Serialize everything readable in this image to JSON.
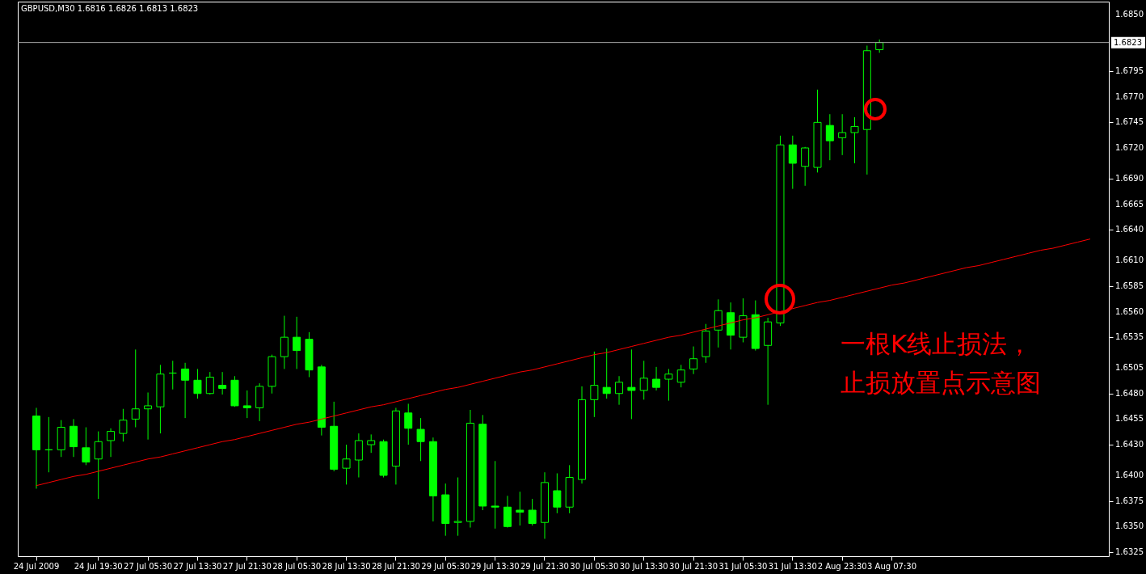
{
  "chart_data": {
    "type": "candlestick",
    "title": "GBPUSD,M30  1.6816 1.6826 1.6813 1.6823",
    "color": "#00ff00",
    "categories": [
      "24 Jul 2009",
      null,
      null,
      null,
      null,
      "24 Jul 19:30",
      null,
      null,
      null,
      "27 Jul 05:30",
      null,
      null,
      null,
      "27 Jul 13:30",
      null,
      null,
      null,
      "27 Jul 21:30",
      null,
      null,
      null,
      "28 Jul 05:30",
      null,
      null,
      null,
      "28 Jul 13:30",
      null,
      null,
      null,
      "28 Jul 21:30",
      null,
      null,
      null,
      "29 Jul 05:30",
      null,
      null,
      null,
      "29 Jul 13:30",
      null,
      null,
      null,
      "29 Jul 21:30",
      null,
      null,
      null,
      "30 Jul 05:30",
      null,
      null,
      null,
      "30 Jul 13:30",
      null,
      null,
      null,
      "30 Jul 21:30",
      null,
      null,
      null,
      "31 Jul 05:30",
      null,
      null,
      null,
      "31 Jul 13:30",
      null,
      null,
      null,
      "2 Aug 23:30",
      null,
      null,
      null,
      "3 Aug 07:30",
      null,
      null,
      null,
      null,
      null,
      null,
      null,
      null,
      null,
      null,
      null,
      null,
      null,
      null,
      null,
      null
    ],
    "ohlc": [
      [
        1.6458,
        1.6466,
        1.6387,
        1.6425
      ],
      [
        1.6425,
        1.6457,
        1.6403,
        1.6425
      ],
      [
        1.6425,
        1.6454,
        1.6418,
        1.6447
      ],
      [
        1.6448,
        1.6455,
        1.6418,
        1.6428
      ],
      [
        1.6427,
        1.6447,
        1.641,
        1.6413
      ],
      [
        1.6416,
        1.6443,
        1.6377,
        1.6433
      ],
      [
        1.6434,
        1.6446,
        1.6418,
        1.6443
      ],
      [
        1.6441,
        1.6465,
        1.6433,
        1.6454
      ],
      [
        1.6455,
        1.6523,
        1.6447,
        1.6465
      ],
      [
        1.6465,
        1.6481,
        1.6435,
        1.6468
      ],
      [
        1.6467,
        1.6508,
        1.6441,
        1.6499
      ],
      [
        1.65,
        1.6512,
        1.6484,
        1.65
      ],
      [
        1.6504,
        1.651,
        1.6456,
        1.6493
      ],
      [
        1.6493,
        1.6504,
        1.6475,
        1.648
      ],
      [
        1.648,
        1.6501,
        1.6479,
        1.6496
      ],
      [
        1.6488,
        1.6501,
        1.6479,
        1.6485
      ],
      [
        1.6493,
        1.6497,
        1.6467,
        1.6468
      ],
      [
        1.6468,
        1.6483,
        1.6456,
        1.6466
      ],
      [
        1.6466,
        1.649,
        1.6453,
        1.6487
      ],
      [
        1.6487,
        1.6518,
        1.648,
        1.6516
      ],
      [
        1.6516,
        1.6556,
        1.6504,
        1.6535
      ],
      [
        1.6535,
        1.6555,
        1.6504,
        1.6522
      ],
      [
        1.6533,
        1.654,
        1.6496,
        1.6503
      ],
      [
        1.6506,
        1.6508,
        1.6439,
        1.6447
      ],
      [
        1.6448,
        1.6472,
        1.6404,
        1.6406
      ],
      [
        1.6407,
        1.643,
        1.6391,
        1.6416
      ],
      [
        1.6415,
        1.6441,
        1.6398,
        1.6434
      ],
      [
        1.643,
        1.644,
        1.6422,
        1.6434
      ],
      [
        1.6433,
        1.6435,
        1.6398,
        1.64
      ],
      [
        1.6409,
        1.6466,
        1.6391,
        1.6463
      ],
      [
        1.6461,
        1.647,
        1.643,
        1.6446
      ],
      [
        1.6445,
        1.6456,
        1.6414,
        1.6433
      ],
      [
        1.6433,
        1.6437,
        1.6355,
        1.638
      ],
      [
        1.6381,
        1.6392,
        1.6341,
        1.6353
      ],
      [
        1.6354,
        1.6398,
        1.6341,
        1.6355
      ],
      [
        1.6355,
        1.6464,
        1.6349,
        1.6451
      ],
      [
        1.645,
        1.6459,
        1.6366,
        1.637
      ],
      [
        1.637,
        1.6414,
        1.6348,
        1.6369
      ],
      [
        1.6369,
        1.638,
        1.6349,
        1.635
      ],
      [
        1.6366,
        1.6384,
        1.6351,
        1.6364
      ],
      [
        1.6366,
        1.6377,
        1.6351,
        1.6353
      ],
      [
        1.6354,
        1.6403,
        1.6338,
        1.6393
      ],
      [
        1.6385,
        1.6402,
        1.6363,
        1.6369
      ],
      [
        1.6369,
        1.641,
        1.6363,
        1.6398
      ],
      [
        1.6396,
        1.6487,
        1.6392,
        1.6474
      ],
      [
        1.6474,
        1.6521,
        1.6457,
        1.6488
      ],
      [
        1.6486,
        1.6524,
        1.6475,
        1.648
      ],
      [
        1.648,
        1.6497,
        1.6469,
        1.6491
      ],
      [
        1.6486,
        1.6523,
        1.6455,
        1.6483
      ],
      [
        1.6483,
        1.6512,
        1.6474,
        1.6495
      ],
      [
        1.6494,
        1.6506,
        1.6483,
        1.6486
      ],
      [
        1.6494,
        1.6504,
        1.6473,
        1.6499
      ],
      [
        1.6491,
        1.6508,
        1.6486,
        1.6503
      ],
      [
        1.6504,
        1.6526,
        1.6499,
        1.6514
      ],
      [
        1.6516,
        1.6548,
        1.651,
        1.6541
      ],
      [
        1.6542,
        1.6572,
        1.6525,
        1.6561
      ],
      [
        1.6559,
        1.6569,
        1.6523,
        1.6537
      ],
      [
        1.6535,
        1.6573,
        1.653,
        1.6556
      ],
      [
        1.6557,
        1.6571,
        1.6522,
        1.6524
      ],
      [
        1.6527,
        1.6554,
        1.6469,
        1.655
      ],
      [
        1.6549,
        1.6732,
        1.6546,
        1.6723
      ],
      [
        1.6723,
        1.6732,
        1.668,
        1.6705
      ],
      [
        1.6702,
        1.6721,
        1.6683,
        1.672
      ],
      [
        1.6701,
        1.6777,
        1.6696,
        1.6745
      ],
      [
        1.6742,
        1.6753,
        1.6708,
        1.6727
      ],
      [
        1.673,
        1.6753,
        1.6713,
        1.6735
      ],
      [
        1.6735,
        1.675,
        1.6705,
        1.6741
      ],
      [
        1.6738,
        1.682,
        1.6694,
        1.6815
      ],
      [
        1.6816,
        1.6826,
        1.6813,
        1.6823
      ],
      null,
      null,
      null,
      null,
      null,
      null,
      null,
      null,
      null,
      null,
      null,
      null,
      null,
      null,
      null,
      null,
      null
    ],
    "series": [
      {
        "type": "line",
        "color": "#ff0000",
        "values": [
          1.639,
          1.6393,
          1.6396,
          1.6399,
          1.6401,
          1.6404,
          1.6407,
          1.641,
          1.6413,
          1.6416,
          1.6418,
          1.6421,
          1.6424,
          1.6427,
          1.643,
          1.6433,
          1.6435,
          1.6438,
          1.6441,
          1.6444,
          1.6447,
          1.645,
          1.6452,
          1.6455,
          1.6458,
          1.6461,
          1.6464,
          1.6467,
          1.6469,
          1.6472,
          1.6475,
          1.6478,
          1.6481,
          1.6484,
          1.6486,
          1.6489,
          1.6492,
          1.6495,
          1.6498,
          1.6501,
          1.6503,
          1.6506,
          1.6509,
          1.6512,
          1.6515,
          1.6518,
          1.652,
          1.6523,
          1.6526,
          1.6529,
          1.6532,
          1.6535,
          1.6537,
          1.654,
          1.6543,
          1.6546,
          1.6549,
          1.6552,
          1.6554,
          1.6557,
          1.656,
          1.6563,
          1.6566,
          1.6569,
          1.6571,
          1.6574,
          1.6577,
          1.658,
          1.6583,
          1.6586,
          1.6588,
          1.6591,
          1.6594,
          1.6597,
          1.66,
          1.6603,
          1.6605,
          1.6608,
          1.6611,
          1.6614,
          1.6617,
          1.662,
          1.6622,
          1.6625,
          1.6628,
          1.6631
        ]
      }
    ],
    "ylim": [
      1.6321,
      1.6863
    ],
    "yticks": [
      1.6325,
      {
        "value": 1.635,
        "label": "1.6350"
      },
      1.6375,
      {
        "value": 1.64,
        "label": "1.6400"
      },
      {
        "value": 1.643,
        "label": "1.6430"
      },
      1.6455,
      {
        "value": 1.648,
        "label": "1.6480"
      },
      1.6505,
      1.6535,
      {
        "value": 1.656,
        "label": "1.6560"
      },
      1.6585,
      {
        "value": 1.661,
        "label": "1.6610"
      },
      {
        "value": 1.664,
        "label": "1.6640"
      },
      1.6665,
      {
        "value": 1.669,
        "label": "1.6690"
      },
      {
        "value": 1.672,
        "label": "1.6720"
      },
      1.6745,
      {
        "value": 1.677,
        "label": "1.6770"
      },
      1.6795,
      {
        "value": 1.685,
        "label": "1.6850"
      }
    ],
    "ref_lines": [
      {
        "axis": "y",
        "value": 1.6823,
        "label": "1.6823",
        "color": "#a0a0a0"
      }
    ],
    "annotations": [
      "一根K线止损法，",
      "止损放置点示意图"
    ]
  }
}
